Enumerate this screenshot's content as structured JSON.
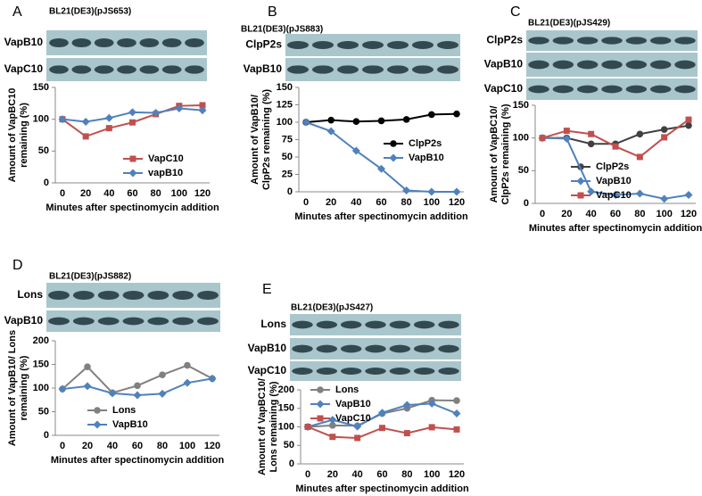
{
  "chart_data": [
    {
      "type": "line",
      "panel": "A",
      "strain": "BL21(DE3)(pJS653)",
      "blots": [
        "VapB10",
        "VapC10"
      ],
      "categories": [
        "0",
        "20",
        "40",
        "60",
        "80",
        "100",
        "120"
      ],
      "ylim": [
        0,
        150
      ],
      "yticks": [
        0,
        50,
        100,
        150
      ],
      "ylabel": [
        "Amount of VapBC10",
        "remaining (%)"
      ],
      "xlabel": "Minutes after spectinomycin addition",
      "series": [
        {
          "name": "VapC10",
          "color": "#c0504d",
          "marker": "square",
          "values": [
            100,
            73,
            86,
            95,
            108,
            121,
            122
          ]
        },
        {
          "name": "vapB10",
          "color": "#4f81bd",
          "marker": "diamond",
          "values": [
            100,
            96,
            102,
            111,
            110,
            117,
            114
          ]
        }
      ]
    },
    {
      "type": "line",
      "panel": "B",
      "strain": "BL21(DE3)(pJS883)",
      "blots": [
        "ClpP2s",
        "VapB10"
      ],
      "categories": [
        "0",
        "20",
        "40",
        "60",
        "80",
        "100",
        "120"
      ],
      "ylim": [
        0,
        150
      ],
      "yticks": [
        0,
        25,
        50,
        75,
        100,
        125,
        150
      ],
      "ylabel": [
        "Amount of VapB10/",
        "ClpP2s remaining (%)"
      ],
      "xlabel": "Minutes after spectinomycin addition",
      "series": [
        {
          "name": "ClpP2s",
          "color": "#000000",
          "marker": "circle",
          "values": [
            100,
            103,
            101,
            102,
            104,
            111,
            112
          ]
        },
        {
          "name": "VapB10",
          "color": "#4f81bd",
          "marker": "diamond",
          "values": [
            100,
            87,
            59,
            33,
            2,
            0,
            0
          ]
        }
      ]
    },
    {
      "type": "line",
      "panel": "C",
      "strain": "BL21(DE3)(pJS429)",
      "blots": [
        "ClpP2s",
        "VapB10",
        "VapC10"
      ],
      "categories": [
        "0",
        "20",
        "40",
        "60",
        "80",
        "100",
        "120"
      ],
      "ylim": [
        0,
        150
      ],
      "yticks": [
        0,
        50,
        100,
        150
      ],
      "ylabel": [
        "Amount of VapBC10/",
        "ClpP2s remaining (%)"
      ],
      "xlabel": "Minutes after spectinomycin addition",
      "series": [
        {
          "name": "ClpP2s",
          "color": "#404040",
          "marker": "circle",
          "values": [
            100,
            100,
            91,
            91,
            106,
            113,
            119
          ]
        },
        {
          "name": "VapB10",
          "color": "#4f81bd",
          "marker": "diamond",
          "values": [
            100,
            99,
            18,
            13,
            15,
            7,
            13
          ]
        },
        {
          "name": "VapC10",
          "color": "#c0504d",
          "marker": "square",
          "values": [
            100,
            111,
            106,
            87,
            71,
            101,
            128
          ]
        }
      ]
    },
    {
      "type": "line",
      "panel": "D",
      "strain": "BL21(DE3)(pJS882)",
      "blots": [
        "Lons",
        "VapB10"
      ],
      "categories": [
        "0",
        "20",
        "40",
        "60",
        "80",
        "100",
        "120"
      ],
      "ylim": [
        0,
        200
      ],
      "yticks": [
        0,
        50,
        100,
        150,
        200
      ],
      "ylabel": [
        "Amount of VapB10/ Lons",
        "remaining (%)"
      ],
      "xlabel": "Minutes after spectinomycin addition",
      "series": [
        {
          "name": "Lons",
          "color": "#808080",
          "marker": "circle",
          "values": [
            98,
            145,
            90,
            105,
            128,
            148,
            120
          ]
        },
        {
          "name": "VapB10",
          "color": "#4f81bd",
          "marker": "diamond",
          "values": [
            98,
            104,
            89,
            85,
            88,
            111,
            120
          ]
        }
      ]
    },
    {
      "type": "line",
      "panel": "E",
      "strain": "BL21(DE3)(pJS427)",
      "blots": [
        "Lons",
        "VapB10",
        "VapC10"
      ],
      "categories": [
        "0",
        "20",
        "40",
        "60",
        "80",
        "100",
        "120"
      ],
      "ylim": [
        0,
        200
      ],
      "yticks": [
        0,
        50,
        100,
        150,
        200
      ],
      "ylabel": [
        "Amount of VapBC10/",
        "Lons remaining (%)"
      ],
      "xlabel": "Minutes after spectinomycin addition",
      "series": [
        {
          "name": "Lons",
          "color": "#808080",
          "marker": "circle",
          "values": [
            100,
            104,
            103,
            136,
            150,
            172,
            171
          ]
        },
        {
          "name": "VapB10",
          "color": "#4f81bd",
          "marker": "diamond",
          "values": [
            100,
            119,
            101,
            138,
            159,
            163,
            136
          ]
        },
        {
          "name": "VapC10",
          "color": "#c0504d",
          "marker": "square",
          "values": [
            100,
            73,
            70,
            97,
            83,
            99,
            93
          ]
        }
      ]
    }
  ]
}
